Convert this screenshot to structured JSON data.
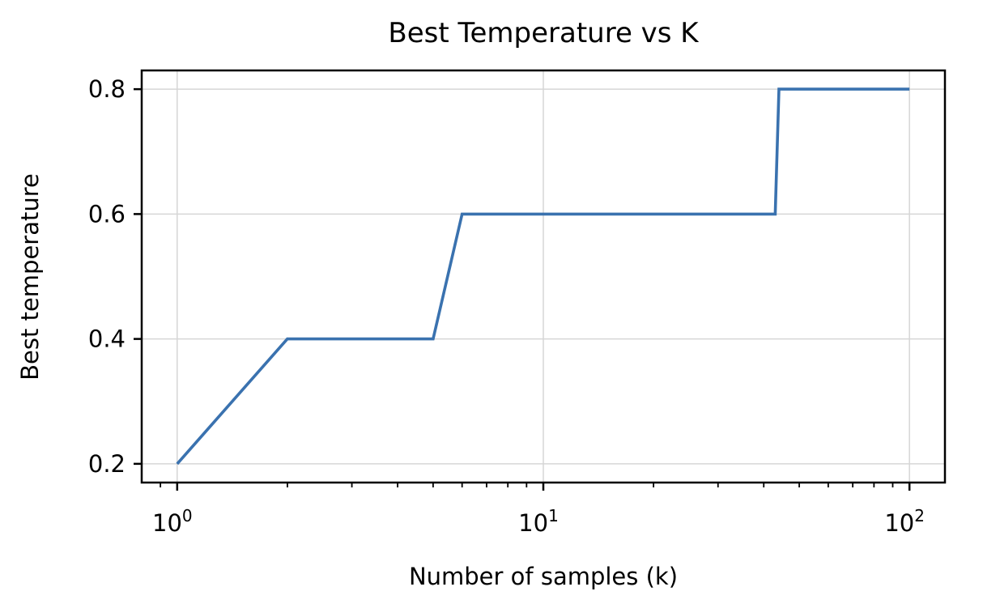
{
  "chart_data": {
    "type": "line",
    "title": "Best Temperature vs K",
    "xlabel": "Number of samples (k)",
    "ylabel": "Best temperature",
    "xscale": "log",
    "xlim": [
      0.8,
      125
    ],
    "ylim": [
      0.17,
      0.83
    ],
    "grid": true,
    "x_ticks": [
      {
        "value": 1,
        "base": "10",
        "exp": "0"
      },
      {
        "value": 10,
        "base": "10",
        "exp": "1"
      },
      {
        "value": 100,
        "base": "10",
        "exp": "2"
      }
    ],
    "y_ticks": [
      {
        "value": 0.2,
        "label": "0.2"
      },
      {
        "value": 0.4,
        "label": "0.4"
      },
      {
        "value": 0.6,
        "label": "0.6"
      },
      {
        "value": 0.8,
        "label": "0.8"
      }
    ],
    "series": [
      {
        "color": "#3a72af",
        "x": [
          1,
          2,
          5,
          6,
          43,
          44,
          100
        ],
        "y": [
          0.2,
          0.4,
          0.4,
          0.6,
          0.6,
          0.8,
          0.8
        ]
      }
    ]
  }
}
